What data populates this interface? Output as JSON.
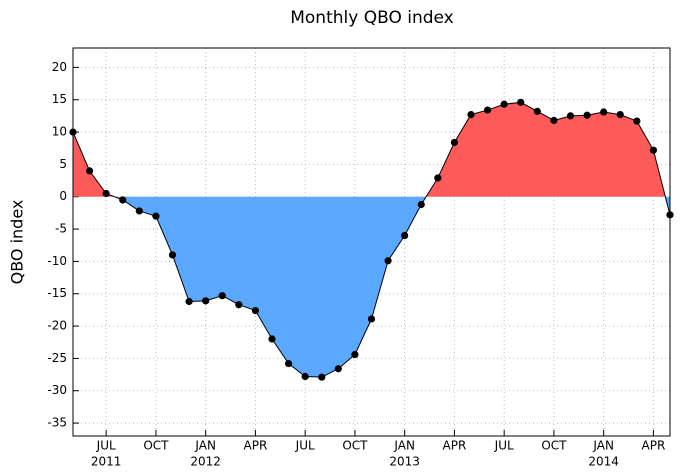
{
  "chart_data": {
    "type": "area-line",
    "title": "Monthly QBO index",
    "y_label": "QBO index",
    "x": [
      "2011-05",
      "2011-06",
      "2011-07",
      "2011-08",
      "2011-09",
      "2011-10",
      "2011-11",
      "2011-12",
      "2012-01",
      "2012-02",
      "2012-03",
      "2012-04",
      "2012-05",
      "2012-06",
      "2012-07",
      "2012-08",
      "2012-09",
      "2012-10",
      "2012-11",
      "2012-12",
      "2013-01",
      "2013-02",
      "2013-03",
      "2013-04",
      "2013-05",
      "2013-06",
      "2013-07",
      "2013-08",
      "2013-09",
      "2013-10",
      "2013-11",
      "2013-12",
      "2014-01",
      "2014-02",
      "2014-03",
      "2014-04",
      "2014-05"
    ],
    "values": [
      10,
      4,
      0.5,
      -0.5,
      -2.2,
      -3,
      -9,
      -16.2,
      -16.1,
      -15.3,
      -16.7,
      -17.6,
      -22,
      -25.8,
      -27.8,
      -27.9,
      -26.6,
      -24.4,
      -18.9,
      -9.9,
      -6,
      -1.2,
      2.9,
      8.4,
      12.7,
      13.4,
      14.3,
      14.6,
      13.2,
      11.8,
      12.5,
      12.6,
      13.1,
      12.7,
      11.7,
      7.2,
      -2.8
    ],
    "positive_color": "#ff5a5a",
    "negative_color": "#5aa8ff",
    "line_color": "#000000",
    "xlim": [
      "2011-05",
      "2014-05"
    ],
    "xticks": [
      {
        "value": "2011-07",
        "label": "JUL"
      },
      {
        "value": "2011-10",
        "label": "OCT"
      },
      {
        "value": "2012-01",
        "label": "JAN"
      },
      {
        "value": "2012-04",
        "label": "APR"
      },
      {
        "value": "2012-07",
        "label": "JUL"
      },
      {
        "value": "2012-10",
        "label": "OCT"
      },
      {
        "value": "2013-01",
        "label": "JAN"
      },
      {
        "value": "2013-04",
        "label": "APR"
      },
      {
        "value": "2013-07",
        "label": "JUL"
      },
      {
        "value": "2013-10",
        "label": "OCT"
      },
      {
        "value": "2014-01",
        "label": "JAN"
      },
      {
        "value": "2014-04",
        "label": "APR"
      }
    ],
    "xtick_years": [
      {
        "value": "2011-07",
        "label": "2011"
      },
      {
        "value": "2012-01",
        "label": "2012"
      },
      {
        "value": "2013-01",
        "label": "2013"
      },
      {
        "value": "2014-01",
        "label": "2014"
      }
    ],
    "ylim": [
      -37,
      23
    ],
    "yticks": [
      -35,
      -30,
      -25,
      -20,
      -15,
      -10,
      -5,
      0,
      5,
      10,
      15,
      20
    ],
    "grid": true
  }
}
